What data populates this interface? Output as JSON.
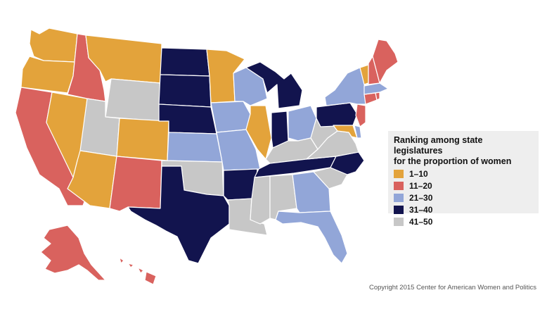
{
  "legend": {
    "title_line1": "Ranking among state legislatures",
    "title_line2": "for the proportion of women",
    "items": [
      {
        "label": "1–10",
        "color": "#e3a33b"
      },
      {
        "label": "11–20",
        "color": "#d9625e"
      },
      {
        "label": "21–30",
        "color": "#92a6d8"
      },
      {
        "label": "31–40",
        "color": "#12144e"
      },
      {
        "label": "41–50",
        "color": "#c7c7c7"
      }
    ]
  },
  "colors": {
    "rank_1_10": "#e3a33b",
    "rank_11_20": "#d9625e",
    "rank_21_30": "#92a6d8",
    "rank_31_40": "#12144e",
    "rank_41_50": "#c7c7c7"
  },
  "states": {
    "WA": "rank_1_10",
    "OR": "rank_1_10",
    "NV": "rank_1_10",
    "AZ": "rank_1_10",
    "CO": "rank_1_10",
    "MT": "rank_1_10",
    "MN": "rank_1_10",
    "IL": "rank_1_10",
    "VT": "rank_1_10",
    "MD": "rank_1_10",
    "CA": "rank_11_20",
    "ID": "rank_11_20",
    "NM": "rank_11_20",
    "AK": "rank_11_20",
    "HI": "rank_11_20",
    "ME": "rank_11_20",
    "NH": "rank_11_20",
    "NJ": "rank_11_20",
    "CT": "rank_11_20",
    "RI": "rank_11_20",
    "KS": "rank_21_30",
    "IA": "rank_21_30",
    "MO": "rank_21_30",
    "WI": "rank_21_30",
    "OH": "rank_21_30",
    "GA": "rank_21_30",
    "FL": "rank_21_30",
    "NY": "rank_21_30",
    "MA": "rank_21_30",
    "DE": "rank_21_30",
    "ND": "rank_31_40",
    "SD": "rank_31_40",
    "NE": "rank_31_40",
    "TX": "rank_31_40",
    "AR": "rank_31_40",
    "MI": "rank_31_40",
    "IN": "rank_31_40",
    "TN": "rank_31_40",
    "NC": "rank_31_40",
    "PA": "rank_31_40",
    "WY": "rank_41_50",
    "UT": "rank_41_50",
    "OK": "rank_41_50",
    "LA": "rank_41_50",
    "MS": "rank_41_50",
    "AL": "rank_41_50",
    "SC": "rank_41_50",
    "KY": "rank_41_50",
    "WV": "rank_41_50",
    "VA": "rank_41_50"
  },
  "copyright": "Copyright 2015 Center for American Women and Politics"
}
